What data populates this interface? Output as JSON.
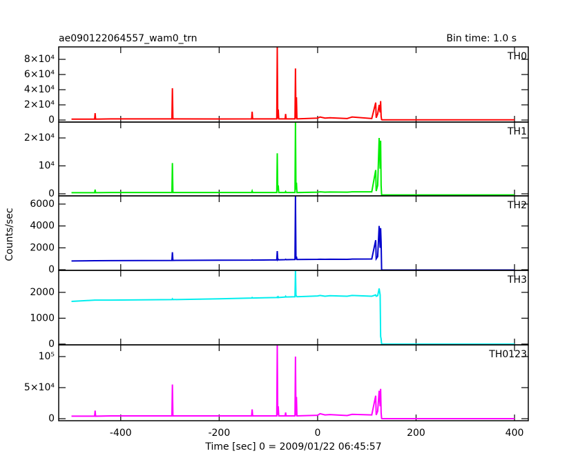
{
  "figure": {
    "title": "ae090122064557_wam0_trn",
    "subtitle": "Bin time: 1.0 s",
    "xlabel": "Time [sec] 0 = 2009/01/22 06:45:57",
    "ylabel": "Counts/sec",
    "xlim": [
      -526,
      428
    ],
    "xticks": [
      -400,
      -200,
      0,
      200,
      400
    ]
  },
  "chart_data": [
    {
      "type": "line",
      "label": "TH0",
      "color": "#ff0000",
      "ylim": [
        -2700,
        96400
      ],
      "yticks": [
        0,
        {
          "value": 20000,
          "label": "2×10⁴"
        },
        {
          "value": 40000,
          "label": "4×10⁴"
        },
        {
          "value": 60000,
          "label": "6×10⁴"
        },
        {
          "value": 80000,
          "label": "8×10⁴"
        }
      ],
      "x": [
        -500,
        -453,
        -452,
        -451,
        -420,
        -296,
        -295,
        -294,
        -200,
        -134,
        -133,
        -132,
        -83,
        -82,
        -81,
        -80,
        -79,
        -66,
        -65,
        -64,
        -46,
        -45,
        -44,
        -43,
        -42,
        0,
        5,
        15,
        25,
        60,
        70,
        110,
        118,
        119,
        122,
        125,
        127,
        128,
        129,
        130,
        131,
        200,
        300,
        400
      ],
      "values": [
        1200,
        1200,
        9000,
        1200,
        1500,
        1500,
        42000,
        1500,
        1400,
        1500,
        11000,
        1500,
        1500,
        96000,
        2000,
        14000,
        1500,
        1500,
        8000,
        1500,
        1500,
        68000,
        2000,
        30000,
        1500,
        2500,
        4000,
        2500,
        3000,
        2000,
        4000,
        2000,
        23000,
        3000,
        8000,
        20000,
        10000,
        25000,
        5000,
        500,
        200,
        200,
        200,
        200
      ]
    },
    {
      "type": "line",
      "label": "TH1",
      "color": "#00ee00",
      "ylim": [
        -740,
        25680
      ],
      "yticks": [
        0,
        {
          "value": 10000,
          "label": "10⁴"
        },
        {
          "value": 20000,
          "label": "2×10⁴"
        }
      ],
      "x": [
        -500,
        -453,
        -452,
        -451,
        -420,
        -296,
        -295,
        -294,
        -200,
        -134,
        -133,
        -132,
        -83,
        -82,
        -81,
        -80,
        -79,
        -66,
        -65,
        -64,
        -46,
        -45,
        -44,
        -43,
        -42,
        0,
        5,
        15,
        25,
        60,
        70,
        110,
        118,
        119,
        122,
        125,
        127,
        128,
        129,
        130,
        131,
        200,
        300,
        400
      ],
      "values": [
        400,
        400,
        1500,
        400,
        450,
        450,
        11000,
        450,
        450,
        450,
        1000,
        450,
        450,
        14500,
        1200,
        3000,
        450,
        450,
        800,
        450,
        450,
        25600,
        1500,
        4000,
        450,
        600,
        700,
        600,
        650,
        600,
        700,
        700,
        8500,
        1000,
        3000,
        20000,
        9000,
        19000,
        3000,
        -400,
        -400,
        -400,
        -400,
        -400
      ]
    },
    {
      "type": "line",
      "label": "TH2",
      "color": "#0000cd",
      "ylim": [
        -60,
        6750
      ],
      "yticks": [
        0,
        2000,
        4000,
        6000
      ],
      "x": [
        -500,
        -453,
        -452,
        -451,
        -420,
        -296,
        -295,
        -294,
        -200,
        -134,
        -133,
        -132,
        -83,
        -82,
        -81,
        -80,
        -79,
        -66,
        -65,
        -64,
        -46,
        -45,
        -44,
        -43,
        -42,
        0,
        5,
        15,
        25,
        60,
        70,
        110,
        118,
        119,
        122,
        125,
        127,
        128,
        129,
        130,
        131,
        200,
        300,
        400
      ],
      "values": [
        800,
        820,
        820,
        820,
        830,
        850,
        1600,
        850,
        870,
        880,
        900,
        880,
        900,
        1700,
        900,
        950,
        900,
        920,
        950,
        920,
        930,
        6700,
        950,
        1200,
        930,
        950,
        960,
        950,
        960,
        950,
        970,
        980,
        2700,
        1000,
        1200,
        4000,
        2000,
        3800,
        2500,
        0,
        -30,
        -30,
        -30,
        -30
      ]
    },
    {
      "type": "line",
      "label": "TH3",
      "color": "#00eeee",
      "ylim": [
        -30,
        2850
      ],
      "yticks": [
        0,
        1000,
        2000
      ],
      "x": [
        -500,
        -453,
        -452,
        -451,
        -420,
        -296,
        -295,
        -294,
        -200,
        -134,
        -133,
        -132,
        -83,
        -82,
        -81,
        -80,
        -79,
        -66,
        -65,
        -64,
        -46,
        -45,
        -44,
        -43,
        -42,
        0,
        5,
        15,
        25,
        60,
        70,
        110,
        118,
        119,
        122,
        125,
        127,
        128,
        129,
        130,
        131,
        200,
        300,
        400
      ],
      "values": [
        1650,
        1700,
        1700,
        1700,
        1700,
        1720,
        1750,
        1720,
        1750,
        1780,
        1800,
        1780,
        1800,
        1820,
        1800,
        1830,
        1800,
        1820,
        1850,
        1820,
        1830,
        2850,
        1900,
        1850,
        1830,
        1860,
        1880,
        1850,
        1870,
        1850,
        1880,
        1850,
        1900,
        1850,
        1870,
        2150,
        1900,
        300,
        200,
        0,
        0,
        0,
        0,
        0
      ]
    },
    {
      "type": "line",
      "label": "TH0123",
      "color": "#ff00ff",
      "ylim": [
        -3300,
        118900
      ],
      "yticks": [
        0,
        {
          "value": 50000,
          "label": "5×10⁴"
        },
        {
          "value": 100000,
          "label": "10⁵"
        }
      ],
      "x": [
        -500,
        -453,
        -452,
        -451,
        -420,
        -296,
        -295,
        -294,
        -200,
        -134,
        -133,
        -132,
        -83,
        -82,
        -81,
        -80,
        -79,
        -66,
        -65,
        -64,
        -46,
        -45,
        -44,
        -43,
        -42,
        0,
        5,
        15,
        25,
        60,
        70,
        110,
        118,
        119,
        122,
        125,
        127,
        128,
        129,
        130,
        131,
        200,
        300,
        400
      ],
      "values": [
        4000,
        4000,
        13000,
        4000,
        4500,
        4500,
        55000,
        4500,
        4500,
        4500,
        15000,
        4500,
        4500,
        118000,
        6000,
        20000,
        4500,
        4500,
        10000,
        4500,
        4500,
        100000,
        5000,
        35000,
        4500,
        5500,
        8000,
        6000,
        6500,
        5000,
        7000,
        6000,
        37000,
        6000,
        12000,
        45000,
        20000,
        48000,
        10000,
        300,
        0,
        0,
        0,
        0
      ]
    }
  ]
}
